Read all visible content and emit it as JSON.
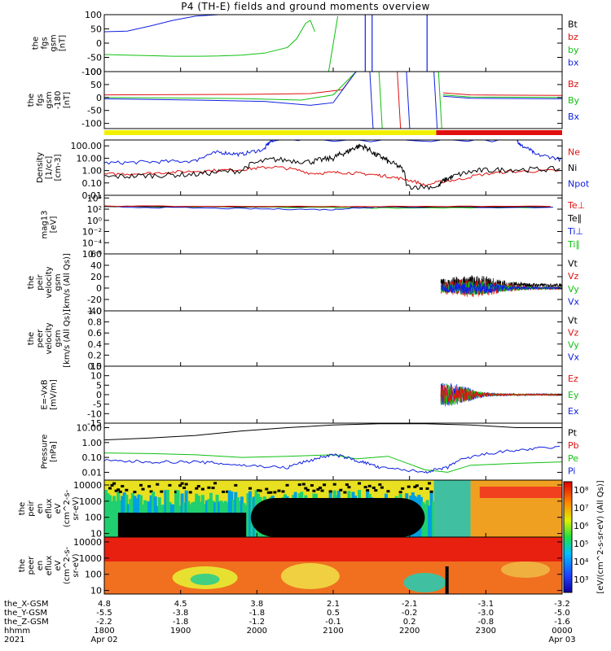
{
  "title": "P4 (TH-E) fields and ground moments overview",
  "chart_data": {
    "type": "line",
    "colors": {
      "black": "#000000",
      "red": "#e01010",
      "green": "#10c010",
      "blue": "#1020e0",
      "yellow": "#f0f000"
    },
    "time_ticks": [
      "1800",
      "1900",
      "2000",
      "2100",
      "2200",
      "2300",
      "0000"
    ],
    "x_rows": [
      {
        "label": "the_X-GSM",
        "values": [
          "4.8",
          "4.5",
          "3.8",
          "2.1",
          "-2.1",
          "-3.1",
          "-3.2"
        ]
      },
      {
        "label": "the_Y-GSM",
        "values": [
          "-5.5",
          "-3.8",
          "-1.8",
          "0.5",
          "-0.2",
          "-3.0",
          "-5.0"
        ]
      },
      {
        "label": "the_Z-GSM",
        "values": [
          "-2.2",
          "-1.8",
          "-1.2",
          "-0.1",
          "0.2",
          "-0.8",
          "-1.6"
        ]
      },
      {
        "label": "hhmm",
        "values": [
          "1800",
          "1900",
          "2000",
          "2100",
          "2200",
          "2300",
          "0000"
        ]
      }
    ],
    "year": "2021",
    "date_left": "Apr 02",
    "date_right": "Apr 03",
    "panels": [
      {
        "id": "fgs",
        "ylabel": [
          "the",
          "fgs",
          "gsm",
          "[nT]"
        ],
        "ticks": [
          "100",
          "50",
          "0",
          "-50",
          "-100"
        ],
        "tick_vals": [
          100,
          50,
          0,
          -50,
          -100
        ],
        "ylim": [
          -100,
          100
        ],
        "scale": "linear",
        "legend": [
          {
            "t": "Bt",
            "c": "black"
          },
          {
            "t": "bz",
            "c": "red"
          },
          {
            "t": "by",
            "c": "green"
          },
          {
            "t": "bx",
            "c": "blue"
          }
        ]
      },
      {
        "id": "fgs2",
        "ylabel": [
          "the",
          "fgs",
          "gsm",
          "-180",
          "[nT]"
        ],
        "ticks": [
          "100",
          "50",
          "0",
          "-50",
          "-100"
        ],
        "tick_vals": [
          100,
          50,
          0,
          -50,
          -100
        ],
        "ylim": [
          -120,
          100
        ],
        "scale": "linear",
        "legend": [
          {
            "t": "Bz",
            "c": "red"
          },
          {
            "t": "By",
            "c": "green"
          },
          {
            "t": "Bx",
            "c": "blue"
          }
        ]
      },
      {
        "id": "density",
        "ylabel": [
          "Density",
          "[1/cc]",
          "[cm-3]"
        ],
        "ticks": [
          "100.00",
          "10.00",
          "1.00",
          "0.10",
          "0.01"
        ],
        "tick_vals": [
          100,
          10,
          1,
          0.1,
          0.01
        ],
        "ylim": [
          0.01,
          300
        ],
        "scale": "log",
        "legend": [
          {
            "t": "Ne",
            "c": "red"
          },
          {
            "t": "Ni",
            "c": "black"
          },
          {
            "t": "Npot",
            "c": "blue"
          }
        ]
      },
      {
        "id": "temp",
        "ylabel": [
          "mag13",
          "[eV]"
        ],
        "ticks": [
          "10⁴",
          "10²",
          "10⁰",
          "10⁻²",
          "10⁻⁴",
          "10⁻⁶"
        ],
        "tick_vals": [
          10000,
          100,
          1,
          0.01,
          0.0001,
          1e-06
        ],
        "ylim": [
          1e-06,
          30000
        ],
        "scale": "log",
        "legend": [
          {
            "t": "Te⊥",
            "c": "red"
          },
          {
            "t": "Te∥",
            "c": "black"
          },
          {
            "t": "Ti⊥",
            "c": "blue"
          },
          {
            "t": "Ti∥",
            "c": "green"
          }
        ]
      },
      {
        "id": "peir_vel",
        "ylabel": [
          "the",
          "peir",
          "velocity",
          "gsm",
          "[km/s (All Qs)]"
        ],
        "ticks": [
          "60",
          "40",
          "20",
          "0",
          "-20",
          "-40"
        ],
        "tick_vals": [
          60,
          40,
          20,
          0,
          -20,
          -40
        ],
        "ylim": [
          -40,
          60
        ],
        "scale": "linear",
        "legend": [
          {
            "t": "Vt",
            "c": "black"
          },
          {
            "t": "Vz",
            "c": "red"
          },
          {
            "t": "Vy",
            "c": "green"
          },
          {
            "t": "Vx",
            "c": "blue"
          }
        ]
      },
      {
        "id": "peer_vel",
        "ylabel": [
          "the",
          "peer",
          "velocity",
          "gsm",
          "[km/s (All Qs)]"
        ],
        "ticks": [
          "1.0",
          "0.8",
          "0.6",
          "0.4",
          "0.2",
          "0.0"
        ],
        "tick_vals": [
          1.0,
          0.8,
          0.6,
          0.4,
          0.2,
          0.0
        ],
        "ylim": [
          0,
          1
        ],
        "scale": "linear",
        "legend": [
          {
            "t": "Vt",
            "c": "black"
          },
          {
            "t": "Vz",
            "c": "red"
          },
          {
            "t": "Vy",
            "c": "green"
          },
          {
            "t": "Vx",
            "c": "blue"
          }
        ]
      },
      {
        "id": "efield",
        "ylabel": [
          "E=-VxB",
          "[mV/m]"
        ],
        "ticks": [
          "15",
          "10",
          "5",
          "0",
          "-5",
          "-10",
          "-15"
        ],
        "tick_vals": [
          15,
          10,
          5,
          0,
          -5,
          -10,
          -15
        ],
        "ylim": [
          -15,
          15
        ],
        "scale": "linear",
        "legend": [
          {
            "t": "Ez",
            "c": "red"
          },
          {
            "t": "Ey",
            "c": "green"
          },
          {
            "t": "Ex",
            "c": "blue"
          }
        ]
      },
      {
        "id": "pressure",
        "ylabel": [
          "Pressure",
          "[nPa]"
        ],
        "ticks": [
          "10.00",
          "1.00",
          "0.10",
          "0.01"
        ],
        "tick_vals": [
          10,
          1,
          0.1,
          0.01
        ],
        "ylim": [
          0.003,
          20
        ],
        "scale": "log",
        "legend": [
          {
            "t": "Pt",
            "c": "black"
          },
          {
            "t": "Pb",
            "c": "red"
          },
          {
            "t": "Pe",
            "c": "green"
          },
          {
            "t": "Pi",
            "c": "blue"
          }
        ]
      },
      {
        "id": "peir_spec",
        "ylabel": [
          "the",
          "peir",
          "en",
          "eflux",
          "eV",
          "(cm^2-s-",
          "sr-eV)"
        ],
        "ticks": [
          "10000",
          "1000",
          "100",
          "10"
        ],
        "tick_vals": [
          10000,
          1000,
          100,
          10
        ],
        "ylim": [
          6,
          20000
        ],
        "scale": "log",
        "spectrogram": true
      },
      {
        "id": "peer_spec",
        "ylabel": [
          "the",
          "peer",
          "en",
          "eflux",
          "eV",
          "(cm^2-s-",
          "sr-eV)"
        ],
        "ticks": [
          "10000",
          "1000",
          "100",
          "10"
        ],
        "tick_vals": [
          10000,
          1000,
          100,
          10
        ],
        "ylim": [
          6,
          20000
        ],
        "scale": "log",
        "spectrogram": true
      }
    ],
    "colorbar_ticks": [
      "10⁸",
      "10⁷",
      "10⁶",
      "10⁵",
      "10⁴",
      "10³"
    ],
    "colorbar_label": "[eV/(cm^2-s-sr-eV) (All Qs)]",
    "fgs_series": {
      "x": [
        0,
        0.05,
        0.1,
        0.15,
        0.2,
        0.25,
        0.3,
        0.35,
        0.4,
        0.42,
        0.44,
        0.45,
        0.46
      ],
      "bz": [
        100,
        100,
        100,
        100,
        100,
        100,
        100,
        100,
        100,
        100,
        100,
        100,
        100
      ],
      "by": [
        -40,
        -42,
        -44,
        -46,
        -46,
        -45,
        -42,
        -35,
        -15,
        15,
        70,
        80,
        40
      ],
      "bx": [
        40,
        42,
        60,
        80,
        95,
        100,
        100,
        100,
        100,
        100,
        100,
        100,
        100
      ]
    },
    "density_ne": [
      [
        0,
        0.5
      ],
      [
        0.1,
        0.6
      ],
      [
        0.2,
        0.9
      ],
      [
        0.3,
        1.2
      ],
      [
        0.37,
        2.0
      ],
      [
        0.45,
        0.6
      ],
      [
        0.52,
        0.7
      ],
      [
        0.58,
        0.5
      ],
      [
        0.64,
        0.25
      ],
      [
        0.7,
        0.06
      ],
      [
        0.78,
        0.2
      ],
      [
        0.88,
        0.8
      ],
      [
        1.0,
        1.0
      ]
    ],
    "density_ni": [
      [
        0,
        0.3
      ],
      [
        0.1,
        0.4
      ],
      [
        0.2,
        0.5
      ],
      [
        0.3,
        1.0
      ],
      [
        0.37,
        8.0
      ],
      [
        0.45,
        5.0
      ],
      [
        0.5,
        10
      ],
      [
        0.53,
        30
      ],
      [
        0.56,
        100
      ],
      [
        0.59,
        20
      ],
      [
        0.62,
        5
      ],
      [
        0.66,
        0.05
      ],
      [
        0.73,
        0.05
      ],
      [
        0.76,
        0.3
      ],
      [
        0.82,
        1.0
      ],
      [
        0.9,
        1.2
      ],
      [
        1.0,
        1.3
      ]
    ],
    "density_npot": [
      [
        0,
        4
      ],
      [
        0.1,
        5
      ],
      [
        0.2,
        6
      ],
      [
        0.25,
        30
      ],
      [
        0.3,
        20
      ],
      [
        0.35,
        50
      ],
      [
        0.37,
        300
      ],
      [
        0.9,
        300
      ],
      [
        0.91,
        100
      ],
      [
        0.94,
        20
      ],
      [
        1.0,
        7
      ]
    ],
    "pressure_pt": [
      [
        0,
        1.5
      ],
      [
        0.1,
        2.0
      ],
      [
        0.2,
        3.0
      ],
      [
        0.3,
        6.0
      ],
      [
        0.4,
        10
      ],
      [
        0.5,
        15
      ],
      [
        0.6,
        18
      ],
      [
        0.7,
        18
      ],
      [
        0.8,
        15
      ],
      [
        0.9,
        10
      ],
      [
        1.0,
        10
      ]
    ],
    "pressure_pe": [
      [
        0,
        0.2
      ],
      [
        0.1,
        0.18
      ],
      [
        0.2,
        0.15
      ],
      [
        0.3,
        0.1
      ],
      [
        0.4,
        0.12
      ],
      [
        0.5,
        0.15
      ],
      [
        0.55,
        0.08
      ],
      [
        0.62,
        0.12
      ],
      [
        0.7,
        0.015
      ],
      [
        0.75,
        0.01
      ],
      [
        0.8,
        0.03
      ],
      [
        0.9,
        0.04
      ],
      [
        1.0,
        0.05
      ]
    ],
    "pressure_pi": [
      [
        0,
        0.06
      ],
      [
        0.1,
        0.05
      ],
      [
        0.2,
        0.05
      ],
      [
        0.3,
        0.03
      ],
      [
        0.4,
        0.02
      ],
      [
        0.45,
        0.06
      ],
      [
        0.5,
        0.15
      ],
      [
        0.55,
        0.06
      ],
      [
        0.6,
        0.02
      ],
      [
        0.7,
        0.01
      ],
      [
        0.75,
        0.02
      ],
      [
        0.8,
        0.1
      ],
      [
        0.9,
        0.3
      ],
      [
        1.0,
        0.5
      ]
    ]
  }
}
